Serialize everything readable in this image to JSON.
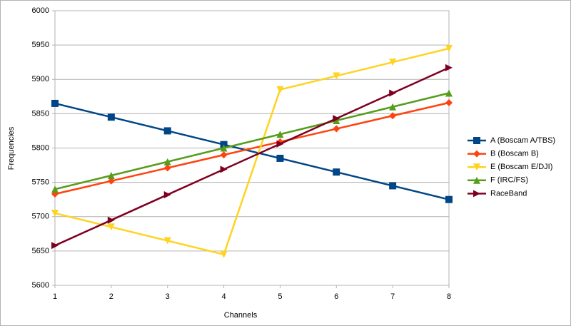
{
  "chart_data": {
    "type": "line",
    "x": [
      1,
      2,
      3,
      4,
      5,
      6,
      7,
      8
    ],
    "xlim": [
      1,
      8
    ],
    "xticks": [
      1,
      2,
      3,
      4,
      5,
      6,
      7,
      8
    ],
    "ylim": [
      5600,
      6000
    ],
    "yticks": [
      5600,
      5650,
      5700,
      5750,
      5800,
      5850,
      5900,
      5950,
      6000
    ],
    "x_label": "Channels",
    "y_label": "Frequencies",
    "grid": true,
    "legend": "right",
    "series": [
      {
        "name": "A (Boscam A/TBS)",
        "color": "#004586",
        "marker": "square",
        "values": [
          5865,
          5845,
          5825,
          5805,
          5785,
          5765,
          5745,
          5725
        ]
      },
      {
        "name": "B (Boscam B)",
        "color": "#ff420e",
        "marker": "diamond",
        "values": [
          5733,
          5752,
          5771,
          5790,
          5809,
          5828,
          5847,
          5866
        ]
      },
      {
        "name": "E (Boscam E/DJI)",
        "color": "#ffd320",
        "marker": "triangle-down",
        "values": [
          5705,
          5685,
          5665,
          5645,
          5885,
          5905,
          5925,
          5945
        ]
      },
      {
        "name": "F (IRC/FS)",
        "color": "#579d1c",
        "marker": "triangle-up",
        "values": [
          5740,
          5760,
          5780,
          5800,
          5820,
          5840,
          5860,
          5880
        ]
      },
      {
        "name": "RaceBand",
        "color": "#7e0021",
        "marker": "triangle-right",
        "values": [
          5658,
          5695,
          5732,
          5769,
          5806,
          5843,
          5880,
          5917
        ]
      }
    ]
  }
}
